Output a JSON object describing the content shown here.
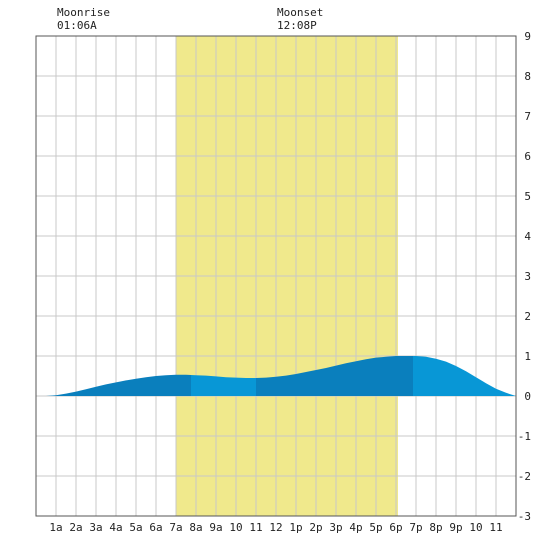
{
  "moon": {
    "rise_label": "Moonrise",
    "rise_time": "01:06A",
    "set_label": "Moonset",
    "set_time": "12:08P"
  },
  "chart_data": {
    "type": "area",
    "title": "",
    "xlabel": "",
    "ylabel": "",
    "xlim": [
      0,
      24
    ],
    "ylim": [
      -3,
      9
    ],
    "x_ticks": [
      {
        "x": 1,
        "label": "1a"
      },
      {
        "x": 2,
        "label": "2a"
      },
      {
        "x": 3,
        "label": "3a"
      },
      {
        "x": 4,
        "label": "4a"
      },
      {
        "x": 5,
        "label": "5a"
      },
      {
        "x": 6,
        "label": "6a"
      },
      {
        "x": 7,
        "label": "7a"
      },
      {
        "x": 8,
        "label": "8a"
      },
      {
        "x": 9,
        "label": "9a"
      },
      {
        "x": 10,
        "label": "10"
      },
      {
        "x": 11,
        "label": "11"
      },
      {
        "x": 12,
        "label": "12"
      },
      {
        "x": 13,
        "label": "1p"
      },
      {
        "x": 14,
        "label": "2p"
      },
      {
        "x": 15,
        "label": "3p"
      },
      {
        "x": 16,
        "label": "4p"
      },
      {
        "x": 17,
        "label": "5p"
      },
      {
        "x": 18,
        "label": "6p"
      },
      {
        "x": 19,
        "label": "7p"
      },
      {
        "x": 20,
        "label": "8p"
      },
      {
        "x": 21,
        "label": "9p"
      },
      {
        "x": 22,
        "label": "10"
      },
      {
        "x": 23,
        "label": "11"
      }
    ],
    "y_ticks": [
      {
        "y": 9,
        "label": "9"
      },
      {
        "y": 8,
        "label": "8"
      },
      {
        "y": 7,
        "label": "7"
      },
      {
        "y": 6,
        "label": "6"
      },
      {
        "y": 5,
        "label": "5"
      },
      {
        "y": 4,
        "label": "4"
      },
      {
        "y": 3,
        "label": "3"
      },
      {
        "y": 2,
        "label": "2"
      },
      {
        "y": 1,
        "label": "1"
      },
      {
        "y": 0,
        "label": "0"
      },
      {
        "y": -1,
        "label": "-1"
      },
      {
        "y": -2,
        "label": "-2"
      },
      {
        "y": -3,
        "label": "-3"
      }
    ],
    "grid": true,
    "daylight_band": {
      "start": 7.0,
      "end": 18.1,
      "color": "#f0e98c"
    },
    "series": [
      {
        "x": [
          0,
          0.5,
          1,
          1.5,
          2,
          2.5,
          3,
          3.5,
          4,
          4.5,
          5,
          5.5,
          6,
          6.5,
          7,
          7.5,
          8,
          8.5,
          9,
          9.5,
          10,
          10.5,
          11,
          11.5,
          12,
          12.5,
          13,
          13.5,
          14,
          14.5,
          15,
          15.5,
          16,
          16.5,
          17,
          17.5,
          18,
          18.5,
          19,
          19.5,
          20,
          20.5,
          21,
          21.5,
          22,
          22.5,
          23,
          23.5,
          24
        ],
        "y": [
          0.0,
          0.0,
          0.02,
          0.06,
          0.11,
          0.17,
          0.23,
          0.29,
          0.34,
          0.39,
          0.43,
          0.47,
          0.5,
          0.52,
          0.53,
          0.53,
          0.52,
          0.51,
          0.49,
          0.47,
          0.46,
          0.45,
          0.45,
          0.46,
          0.48,
          0.51,
          0.55,
          0.6,
          0.65,
          0.7,
          0.76,
          0.82,
          0.87,
          0.92,
          0.96,
          0.98,
          1.0,
          1.0,
          1.0,
          0.98,
          0.93,
          0.86,
          0.75,
          0.62,
          0.47,
          0.32,
          0.18,
          0.08,
          0.0
        ]
      }
    ],
    "fill_segments": [
      {
        "start": 0,
        "end": 7.75,
        "color": "#0a7fbd"
      },
      {
        "start": 7.75,
        "end": 11.0,
        "color": "#0897d6"
      },
      {
        "start": 11.0,
        "end": 18.85,
        "color": "#0a7fbd"
      },
      {
        "start": 18.85,
        "end": 24,
        "color": "#0897d6"
      }
    ]
  }
}
